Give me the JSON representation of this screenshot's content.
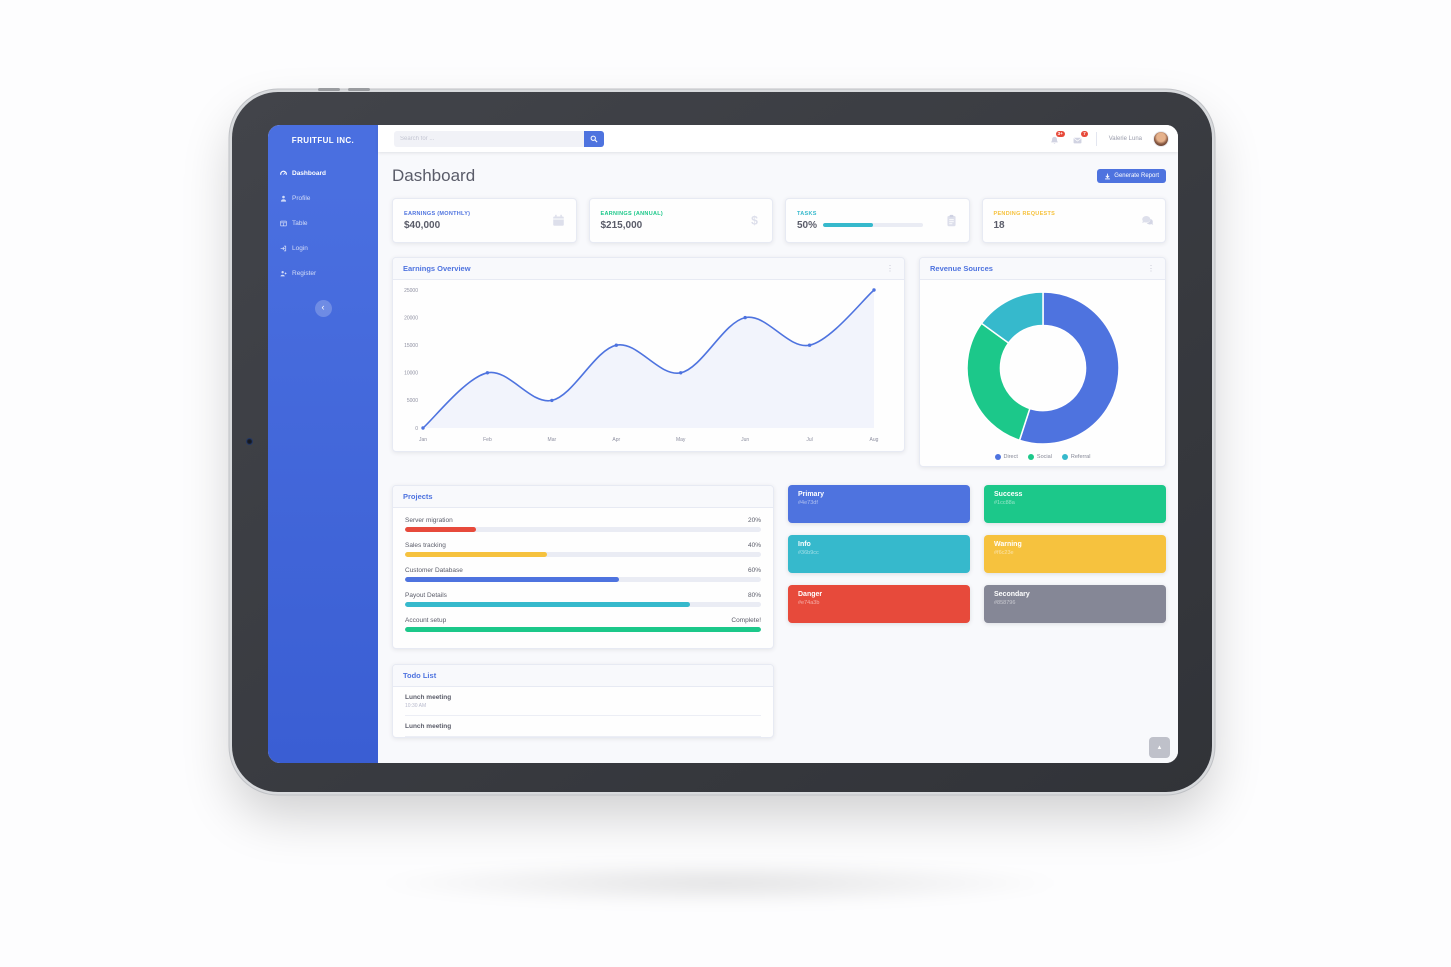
{
  "brand": "FRUITFUL INC.",
  "ui": {
    "kebab_glyph": "⋮",
    "scroll_top_glyph": "▲",
    "collapse_glyph": "‹"
  },
  "sidebar": {
    "items": [
      {
        "label": "Dashboard",
        "icon": "tachometer-icon",
        "active": true
      },
      {
        "label": "Profile",
        "icon": "user-icon",
        "active": false
      },
      {
        "label": "Table",
        "icon": "table-icon",
        "active": false
      },
      {
        "label": "Login",
        "icon": "sign-in-icon",
        "active": false
      },
      {
        "label": "Register",
        "icon": "user-plus-icon",
        "active": false
      }
    ]
  },
  "topbar": {
    "search_placeholder": "Search for ...",
    "alerts_badge": "3+",
    "messages_badge": "7",
    "user_name": "Valerie Luna"
  },
  "page": {
    "title": "Dashboard",
    "generate_report_label": "Generate Report"
  },
  "stat_cards": [
    {
      "label": "EARNINGS (MONTHLY)",
      "value": "$40,000",
      "accent": "#4e73df",
      "icon": "calendar-icon"
    },
    {
      "label": "EARNINGS (ANNUAL)",
      "value": "$215,000",
      "accent": "#1cc88a",
      "icon": "dollar-sign-icon",
      "icon_glyph": "$"
    },
    {
      "label": "TASKS",
      "value": "50%",
      "accent": "#36b9cc",
      "icon": "clipboard-icon",
      "progress": 50
    },
    {
      "label": "PENDING REQUESTS",
      "value": "18",
      "accent": "#f6c23e",
      "icon": "comments-icon"
    }
  ],
  "earnings_card": {
    "title": "Earnings Overview"
  },
  "revenue_card": {
    "title": "Revenue Sources"
  },
  "chart_data": [
    {
      "type": "line",
      "title": "Earnings Overview",
      "x": [
        "Jan",
        "Feb",
        "Mar",
        "Apr",
        "May",
        "Jun",
        "Jul",
        "Aug"
      ],
      "values": [
        0,
        10000,
        5000,
        15000,
        10000,
        20000,
        15000,
        25000
      ],
      "ylim": [
        0,
        25000
      ],
      "y_ticks": [
        0,
        5000,
        10000,
        15000,
        20000,
        25000
      ],
      "line_color": "#4e73df",
      "fill_color": "rgba(78,115,223,0.07)",
      "grid": false,
      "legend": false
    },
    {
      "type": "pie",
      "title": "Revenue Sources",
      "labels": [
        "Direct",
        "Social",
        "Referral"
      ],
      "values": [
        55,
        30,
        15
      ],
      "colors": [
        "#4e73df",
        "#1cc88a",
        "#36b9cc"
      ],
      "donut_hole_ratio": 0.56,
      "legend_position": "bottom"
    }
  ],
  "projects": {
    "title": "Projects",
    "items": [
      {
        "name": "Server migration",
        "value": "20%",
        "pct": 20,
        "color": "#e74a3b"
      },
      {
        "name": "Sales tracking",
        "value": "40%",
        "pct": 40,
        "color": "#f6c23e"
      },
      {
        "name": "Customer Database",
        "value": "60%",
        "pct": 60,
        "color": "#4e73df"
      },
      {
        "name": "Payout Details",
        "value": "80%",
        "pct": 80,
        "color": "#36b9cc"
      },
      {
        "name": "Account setup",
        "value": "Complete!",
        "pct": 100,
        "color": "#1cc88a"
      }
    ]
  },
  "color_cards": [
    {
      "name": "Primary",
      "hex": "#4e73df"
    },
    {
      "name": "Success",
      "hex": "#1cc88a"
    },
    {
      "name": "Info",
      "hex": "#36b9cc"
    },
    {
      "name": "Warning",
      "hex": "#f6c23e"
    },
    {
      "name": "Danger",
      "hex": "#e74a3b"
    },
    {
      "name": "Secondary",
      "hex": "#858796"
    }
  ],
  "todo": {
    "title": "Todo List",
    "items": [
      {
        "name": "Lunch meeting",
        "time": "10:30 AM"
      },
      {
        "name": "Lunch meeting",
        "time": ""
      }
    ]
  }
}
